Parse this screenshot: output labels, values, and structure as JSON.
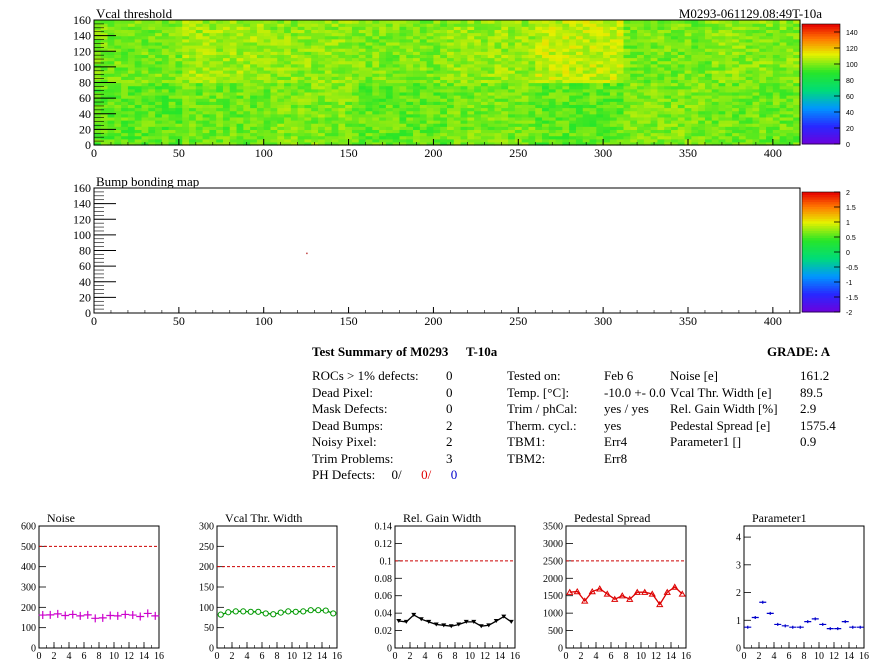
{
  "maps": [
    {
      "title": "Vcal threshold",
      "id_label": "M0293-061129.08:49T-10a",
      "x_ticks": [
        "0",
        "50",
        "100",
        "150",
        "200",
        "250",
        "300",
        "350",
        "400"
      ],
      "y_ticks": [
        "0",
        "20",
        "40",
        "60",
        "80",
        "100",
        "120",
        "140",
        "160"
      ],
      "colorbar_ticks": [
        "0",
        "20",
        "40",
        "60",
        "80",
        "100",
        "120",
        "140"
      ],
      "xlim": [
        0,
        416
      ],
      "ylim": [
        0,
        160
      ],
      "roc_mean_values": [
        [
          96,
          98,
          100,
          97,
          99,
          96,
          100,
          98
        ],
        [
          99,
          104,
          102,
          100,
          103,
          108,
          99,
          101
        ]
      ]
    },
    {
      "title": "Bump bonding map",
      "x_ticks": [
        "0",
        "50",
        "100",
        "150",
        "200",
        "250",
        "300",
        "350",
        "400"
      ],
      "y_ticks": [
        "0",
        "20",
        "40",
        "60",
        "80",
        "100",
        "120",
        "140",
        "160"
      ],
      "colorbar_ticks": [
        "-2",
        "-1.5",
        "-1",
        "-0.5",
        "0",
        "0.5",
        "1",
        "1.5",
        "2"
      ],
      "xlim": [
        0,
        416
      ],
      "ylim": [
        0,
        160
      ],
      "marked_pixel": {
        "x": 125,
        "y": 76
      }
    }
  ],
  "summary": {
    "title": "Test Summary of M0293",
    "temp_label": "T-10a",
    "grade_label": "GRADE:  A",
    "left_rows": [
      {
        "label": "ROCs > 1% defects:",
        "value": "0"
      },
      {
        "label": "Dead Pixel:",
        "value": "0"
      },
      {
        "label": "Mask Defects:",
        "value": "0"
      },
      {
        "label": "Dead Bumps:",
        "value": "2"
      },
      {
        "label": "Noisy Pixel:",
        "value": "2"
      },
      {
        "label": "Trim Problems:",
        "value": "3"
      }
    ],
    "ph_defects": {
      "label": "PH Defects:",
      "v1": "0/",
      "v2": "0/",
      "v3": "0"
    },
    "mid_rows": [
      {
        "label": "Tested on:",
        "value": "Feb 6"
      },
      {
        "label": "Temp. [°C]:",
        "value": "-10.0 +- 0.0"
      },
      {
        "label": "Trim / phCal:",
        "value": "yes / yes"
      },
      {
        "label": "Therm. cycl.:",
        "value": "yes"
      },
      {
        "label": "TBM1:",
        "value": "Err4"
      },
      {
        "label": "TBM2:",
        "value": "Err8"
      }
    ],
    "right_rows": [
      {
        "label": "Noise [e]",
        "value": "161.2"
      },
      {
        "label": "Vcal Thr. Width [e]",
        "value": "89.5"
      },
      {
        "label": "Rel. Gain Width [%]",
        "value": "2.9"
      },
      {
        "label": "Pedestal Spread [e]",
        "value": "1575.4"
      },
      {
        "label": "Parameter1 []",
        "value": "0.9"
      }
    ]
  },
  "chart_data": [
    {
      "type": "scatter",
      "title": "Noise",
      "x": [
        0,
        1,
        2,
        3,
        4,
        5,
        6,
        7,
        8,
        9,
        10,
        11,
        12,
        13,
        14,
        15
      ],
      "values": [
        162,
        163,
        168,
        160,
        165,
        158,
        163,
        146,
        148,
        160,
        158,
        165,
        162,
        155,
        170,
        158
      ],
      "ylim": [
        0,
        600
      ],
      "y_ticks": [
        "0",
        "100",
        "200",
        "300",
        "400",
        "500",
        "600"
      ],
      "xlim": [
        0,
        16
      ],
      "x_ticks": [
        "0",
        "2",
        "4",
        "6",
        "8",
        "10",
        "12",
        "14",
        "16"
      ],
      "threshold": 500,
      "color": "#cc00cc",
      "marker": "plus",
      "connect": false
    },
    {
      "type": "line",
      "title": "Vcal Thr. Width",
      "x": [
        0,
        1,
        2,
        3,
        4,
        5,
        6,
        7,
        8,
        9,
        10,
        11,
        12,
        13,
        14,
        15
      ],
      "values": [
        82,
        88,
        90,
        90,
        89,
        89,
        85,
        83,
        87,
        90,
        89,
        90,
        93,
        93,
        92,
        85
      ],
      "ylim": [
        0,
        300
      ],
      "y_ticks": [
        "0",
        "50",
        "100",
        "150",
        "200",
        "250",
        "300"
      ],
      "xlim": [
        0,
        16
      ],
      "x_ticks": [
        "0",
        "2",
        "4",
        "6",
        "8",
        "10",
        "12",
        "14",
        "16"
      ],
      "threshold": 200,
      "color": "#009900",
      "marker": "circle",
      "connect": true
    },
    {
      "type": "line",
      "title": "Rel. Gain Width",
      "x": [
        0,
        1,
        2,
        3,
        4,
        5,
        6,
        7,
        8,
        9,
        10,
        11,
        12,
        13,
        14,
        15
      ],
      "values": [
        0.031,
        0.03,
        0.038,
        0.033,
        0.03,
        0.027,
        0.026,
        0.025,
        0.027,
        0.03,
        0.03,
        0.025,
        0.026,
        0.031,
        0.036,
        0.03
      ],
      "ylim": [
        0,
        0.14
      ],
      "y_ticks": [
        "0",
        "0.02",
        "0.04",
        "0.06",
        "0.08",
        "0.1",
        "0.12",
        "0.14"
      ],
      "xlim": [
        0,
        16
      ],
      "x_ticks": [
        "0",
        "2",
        "4",
        "6",
        "8",
        "10",
        "12",
        "14",
        "16"
      ],
      "threshold": 0.1,
      "color": "#000000",
      "marker": "triangle-down",
      "connect": true
    },
    {
      "type": "line",
      "title": "Pedestal Spread",
      "x": [
        0,
        1,
        2,
        3,
        4,
        5,
        6,
        7,
        8,
        9,
        10,
        11,
        12,
        13,
        14,
        15
      ],
      "values": [
        1600,
        1620,
        1350,
        1620,
        1700,
        1550,
        1400,
        1500,
        1400,
        1600,
        1600,
        1550,
        1250,
        1600,
        1750,
        1550
      ],
      "ylim": [
        0,
        3500
      ],
      "y_ticks": [
        "0",
        "500",
        "1000",
        "1500",
        "2000",
        "2500",
        "3000",
        "3500"
      ],
      "xlim": [
        0,
        16
      ],
      "x_ticks": [
        "0",
        "2",
        "4",
        "6",
        "8",
        "10",
        "12",
        "14",
        "16"
      ],
      "threshold": 2500,
      "color": "#dd0000",
      "marker": "triangle-up",
      "connect": true
    },
    {
      "type": "scatter",
      "title": "Parameter1",
      "x": [
        0,
        1,
        2,
        3,
        4,
        5,
        6,
        7,
        8,
        9,
        10,
        11,
        12,
        13,
        14,
        15
      ],
      "values": [
        0.75,
        1.1,
        1.65,
        1.25,
        0.85,
        0.8,
        0.75,
        0.75,
        0.95,
        1.05,
        0.85,
        0.7,
        0.7,
        0.95,
        0.75,
        0.75
      ],
      "ylim": [
        0,
        4.4
      ],
      "y_ticks": [
        "0",
        "1",
        "2",
        "3",
        "4"
      ],
      "xlim": [
        0,
        16
      ],
      "x_ticks": [
        "0",
        "2",
        "4",
        "6",
        "8",
        "10",
        "12",
        "14",
        "16"
      ],
      "threshold": null,
      "color": "#0000cc",
      "marker": "dash",
      "connect": false
    }
  ]
}
